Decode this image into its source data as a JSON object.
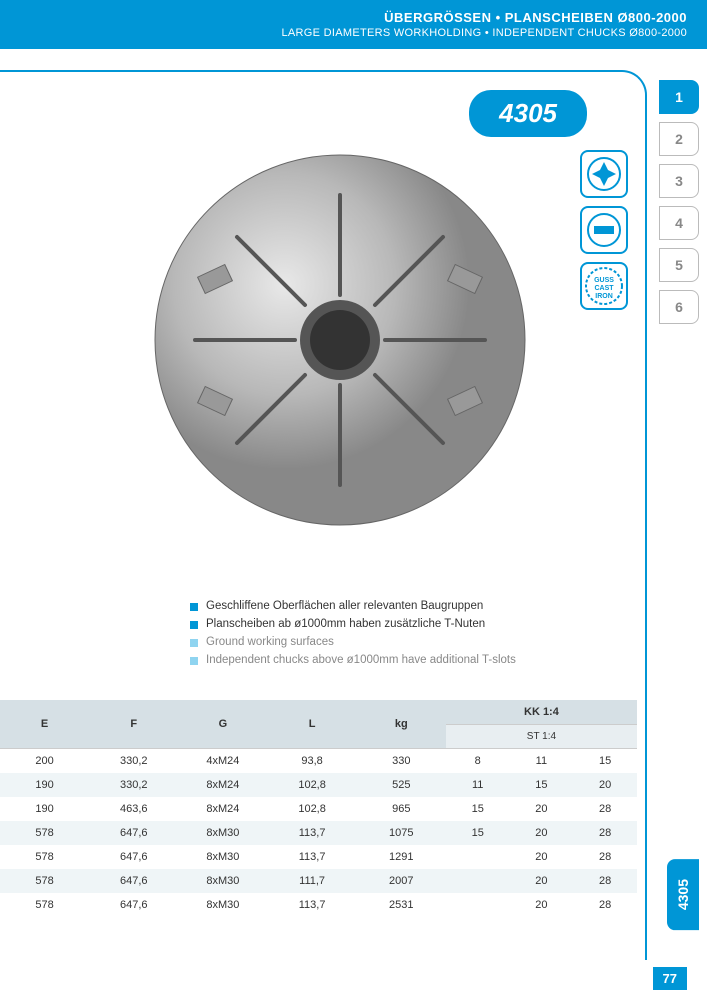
{
  "header": {
    "title_de": "ÜBERGRÖSSEN • PLANSCHEIBEN Ø800-2000",
    "title_en": "LARGE DIAMETERS WORKHOLDING • INDEPENDENT CHUCKS Ø800-2000"
  },
  "product": {
    "code": "4305"
  },
  "side_tabs": [
    "1",
    "2",
    "3",
    "4",
    "5",
    "6"
  ],
  "side_active_index": 0,
  "feature_icons": [
    {
      "name": "four-jaw-icon",
      "label": "✚"
    },
    {
      "name": "slot-icon",
      "label": "▬"
    },
    {
      "name": "cast-iron-icon",
      "label": "GUSS CAST IRON"
    }
  ],
  "bullets": [
    {
      "text": "Geschliffene Oberflächen aller relevanten Baugruppen",
      "style": "bold"
    },
    {
      "text": "Planscheiben ab ø1000mm haben zusätzliche T-Nuten",
      "style": "bold"
    },
    {
      "text": "Ground working surfaces",
      "style": "light"
    },
    {
      "text": "Independent chucks above ø1000mm have additional T-slots",
      "style": "light"
    }
  ],
  "table": {
    "columns": [
      "E",
      "F",
      "G",
      "L",
      "kg"
    ],
    "super_col": "KK 1:4",
    "sub_col": "ST 1:4",
    "kk_cols": 3,
    "rows": [
      {
        "E": "200",
        "F": "330,2",
        "G": "4xM24",
        "L": "93,8",
        "kg": "330",
        "kk": [
          "8",
          "11",
          "15"
        ]
      },
      {
        "E": "190",
        "F": "330,2",
        "G": "8xM24",
        "L": "102,8",
        "kg": "525",
        "kk": [
          "11",
          "15",
          "20"
        ]
      },
      {
        "E": "190",
        "F": "463,6",
        "G": "8xM24",
        "L": "102,8",
        "kg": "965",
        "kk": [
          "15",
          "20",
          "28"
        ]
      },
      {
        "E": "578",
        "F": "647,6",
        "G": "8xM30",
        "L": "113,7",
        "kg": "1075",
        "kk": [
          "15",
          "20",
          "28"
        ]
      },
      {
        "E": "578",
        "F": "647,6",
        "G": "8xM30",
        "L": "113,7",
        "kg": "1291",
        "kk": [
          "",
          "20",
          "28"
        ]
      },
      {
        "E": "578",
        "F": "647,6",
        "G": "8xM30",
        "L": "111,7",
        "kg": "2007",
        "kk": [
          "",
          "20",
          "28"
        ]
      },
      {
        "E": "578",
        "F": "647,6",
        "G": "8xM30",
        "L": "113,7",
        "kg": "2531",
        "kk": [
          "",
          "20",
          "28"
        ]
      }
    ]
  },
  "side_label": "4305",
  "page_number": "77",
  "colors": {
    "primary": "#0096d6",
    "header_row": "#d6e0e5",
    "row_even": "#eff5f7"
  }
}
